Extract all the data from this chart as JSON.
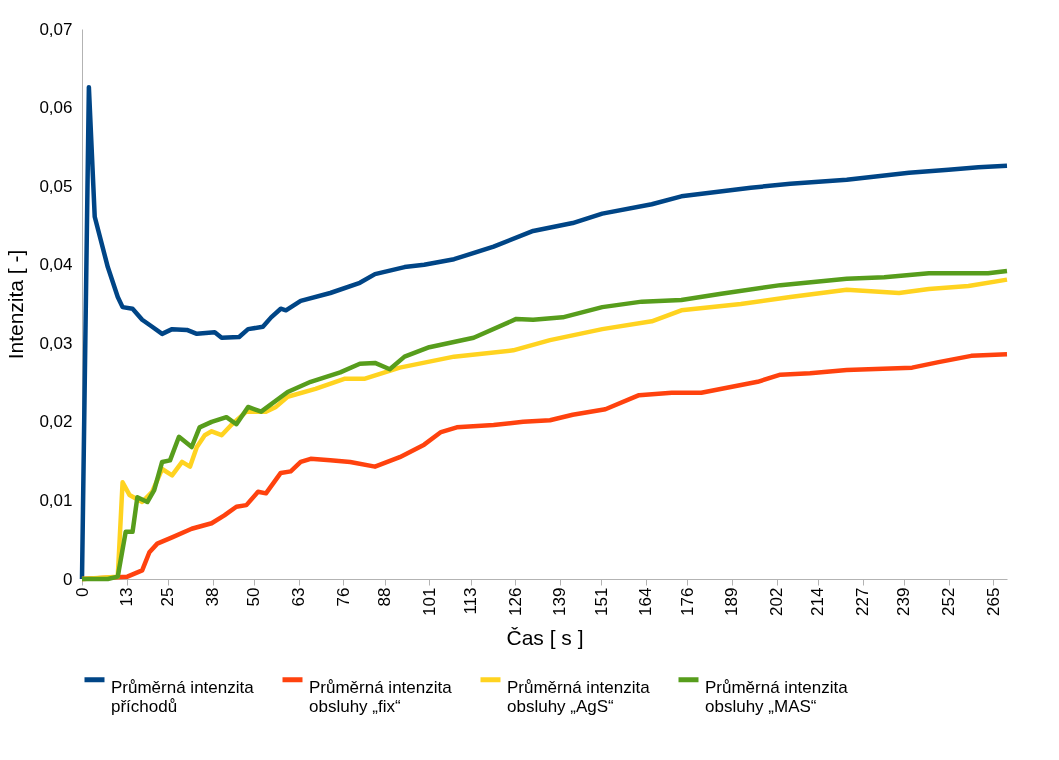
{
  "chart_data": {
    "type": "line",
    "xlabel": "Čas [ s ]",
    "ylabel": "Intenzita [ -]",
    "xlim": [
      0,
      269
    ],
    "xticks": [
      0,
      13,
      25,
      38,
      50,
      63,
      76,
      88,
      101,
      113,
      126,
      139,
      151,
      164,
      176,
      189,
      202,
      214,
      227,
      239,
      252,
      265
    ],
    "ylim": [
      0,
      0.07
    ],
    "yticks": [
      0,
      {
        "value": 0.01,
        "label": "0,01"
      },
      {
        "value": 0.02,
        "label": "0,02"
      },
      {
        "value": 0.03,
        "label": "0,03"
      },
      {
        "value": 0.04,
        "label": "0,04"
      },
      {
        "value": 0.05,
        "label": "0,05"
      },
      {
        "value": 0.06,
        "label": "0,06"
      },
      {
        "value": 0.07,
        "label": "0,07"
      }
    ],
    "grid": false,
    "legend": "bottom",
    "marker": "none",
    "line_style": "solid",
    "series": [
      {
        "name": "Průměrná intenzita příchodů",
        "color": "#004586",
        "x": [
          0,
          2.0,
          3.7,
          7.5,
          10.4,
          11.8,
          14.7,
          17.5,
          20.4,
          23.3,
          26.2,
          30.5,
          33.4,
          38.6,
          40.6,
          45.7,
          48.3,
          52.6,
          55.0,
          57.8,
          59.3,
          63.6,
          72.2,
          80.8,
          85.2,
          93.8,
          99.5,
          108.2,
          119.7,
          131.2,
          142.7,
          151.3,
          165.7,
          174.3,
          194.5,
          206.0,
          222.4,
          240.5,
          252.0,
          260.7,
          269.0
        ],
        "values": [
          0,
          0.0626,
          0.0461,
          0.0397,
          0.0359,
          0.0346,
          0.0344,
          0.033,
          0.0321,
          0.0312,
          0.0318,
          0.0317,
          0.0312,
          0.0314,
          0.0307,
          0.0308,
          0.0318,
          0.0321,
          0.0333,
          0.0344,
          0.0342,
          0.0354,
          0.0364,
          0.0377,
          0.0388,
          0.0397,
          0.04,
          0.0407,
          0.0423,
          0.0443,
          0.0453,
          0.0465,
          0.0477,
          0.0487,
          0.0498,
          0.0503,
          0.0508,
          0.0517,
          0.0521,
          0.0524,
          0.0526
        ]
      },
      {
        "name": "Průměrná intenzita obsluhy „fix“",
        "color": "#ff420e",
        "x": [
          0,
          13.2,
          17.5,
          19.6,
          21.9,
          26.2,
          31.9,
          37.7,
          41.4,
          44.9,
          47.8,
          51.2,
          53.5,
          57.8,
          60.7,
          63.6,
          66.5,
          72.2,
          78.0,
          85.2,
          92.4,
          99.5,
          104.4,
          109.0,
          119.7,
          128.3,
          136.1,
          142.7,
          152.2,
          162.0,
          171.5,
          180.1,
          196.5,
          203.1,
          211.7,
          222.4,
          241.4,
          249.1,
          258.6,
          269.0
        ],
        "values": [
          0,
          0.0003,
          0.0011,
          0.0034,
          0.0045,
          0.0053,
          0.0064,
          0.0071,
          0.0081,
          0.0092,
          0.0094,
          0.0111,
          0.0109,
          0.0135,
          0.0137,
          0.0149,
          0.0153,
          0.0151,
          0.0149,
          0.0143,
          0.0155,
          0.0171,
          0.0187,
          0.0193,
          0.0196,
          0.02,
          0.0202,
          0.0209,
          0.0216,
          0.0234,
          0.0237,
          0.0237,
          0.0251,
          0.026,
          0.0262,
          0.0266,
          0.0269,
          0.0276,
          0.0284,
          0.0286
        ]
      },
      {
        "name": "Průměrná intenzita obsluhy „AgS“",
        "color": "#ffd320",
        "x": [
          0,
          10.4,
          11.8,
          13.8,
          17.5,
          20.4,
          23.3,
          26.2,
          29.1,
          31.4,
          33.4,
          35.7,
          37.7,
          40.6,
          43.4,
          47.8,
          53.5,
          56.4,
          59.8,
          67.9,
          76.5,
          82.3,
          92.4,
          108.2,
          125.4,
          136.1,
          151.3,
          165.7,
          174.3,
          191.6,
          206.0,
          222.4,
          237.6,
          246.3,
          257.8,
          269.0
        ],
        "values": [
          0,
          0.0003,
          0.0123,
          0.0107,
          0.0098,
          0.0111,
          0.014,
          0.0132,
          0.0149,
          0.0143,
          0.0168,
          0.0183,
          0.0188,
          0.0183,
          0.0196,
          0.0213,
          0.0213,
          0.0219,
          0.0232,
          0.0242,
          0.0255,
          0.0255,
          0.0269,
          0.0283,
          0.0291,
          0.0304,
          0.0318,
          0.0328,
          0.0342,
          0.035,
          0.0359,
          0.0368,
          0.0364,
          0.0369,
          0.0373,
          0.0381
        ]
      },
      {
        "name": "Průměrná intenzita obsluhy „MAS“",
        "color": "#579d1c",
        "x": [
          0,
          7.5,
          10.4,
          12.7,
          14.7,
          16.1,
          19.0,
          21.0,
          23.3,
          25.6,
          28.2,
          31.9,
          34.2,
          37.7,
          42.0,
          44.9,
          48.3,
          52.1,
          59.8,
          66.5,
          75.1,
          80.8,
          85.2,
          89.5,
          93.8,
          101.0,
          113.9,
          126.3,
          131.2,
          139.8,
          151.3,
          162.8,
          174.3,
          185.9,
          203.1,
          222.4,
          233.3,
          246.3,
          263.5,
          269.0
        ],
        "values": [
          0,
          0,
          0.0003,
          0.006,
          0.006,
          0.0104,
          0.0098,
          0.0113,
          0.0149,
          0.0151,
          0.0181,
          0.0168,
          0.0193,
          0.02,
          0.0206,
          0.0197,
          0.0219,
          0.0213,
          0.0238,
          0.0251,
          0.0263,
          0.0274,
          0.0275,
          0.0267,
          0.0283,
          0.0295,
          0.0307,
          0.0331,
          0.033,
          0.0333,
          0.0346,
          0.0353,
          0.0355,
          0.0363,
          0.0374,
          0.0382,
          0.0384,
          0.0389,
          0.0389,
          0.0392
        ]
      }
    ]
  }
}
